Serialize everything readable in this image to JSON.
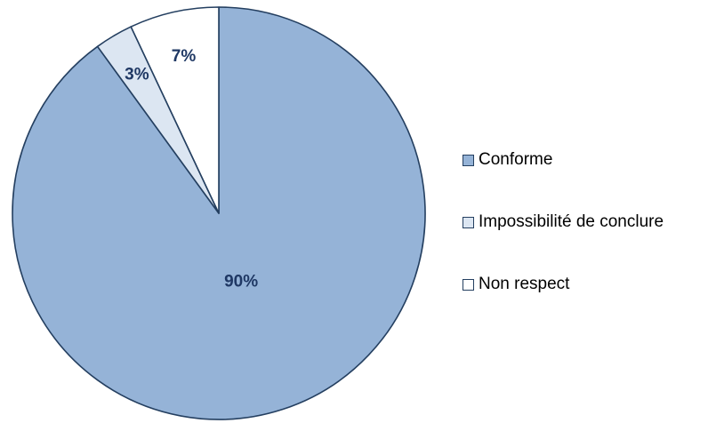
{
  "chart_data": {
    "type": "pie",
    "title": "",
    "start_angle_deg": 0,
    "direction": "clockwise",
    "slices": [
      {
        "label": "Conforme",
        "value": 90,
        "display": "90%",
        "color": "#95b3d7"
      },
      {
        "label": "Impossibilité de conclure",
        "value": 3,
        "display": "3%",
        "color": "#dce6f2"
      },
      {
        "label": "Non respect",
        "value": 7,
        "display": "7%",
        "color": "#ffffff"
      }
    ],
    "stroke_color": "#243f60",
    "label_color": "#1f3864",
    "legend": {
      "placement": "right",
      "entries": [
        "Conforme",
        "Impossibilité de conclure",
        "Non respect"
      ]
    }
  }
}
